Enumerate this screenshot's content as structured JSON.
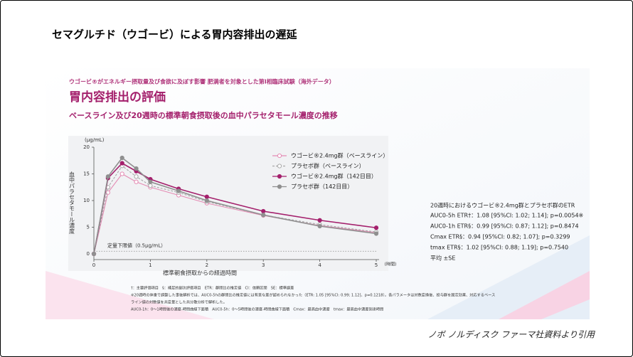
{
  "slide_title": "セマグルチド（ウゴービ）による胃内容排出の遅延",
  "header": {
    "kicker": "ウゴービ®がエネルギー摂取量及び食欲に及ぼす影響 肥満者を対象とした第I相臨床試験（海外データ）",
    "title": "胃内容排出の評価",
    "subtitle": "ベースライン及び20週時の標準朝食摂取後の血中パラセタモール濃度の推移"
  },
  "chart_data": {
    "type": "line",
    "y_unit": "(μg/mL)",
    "y_label": "血中パラセタモール濃度",
    "x_label": "標準朝食摂取からの経過時間",
    "x_unit": "(時間)",
    "x": [
      0,
      0.25,
      0.5,
      0.75,
      1,
      1.5,
      2,
      3,
      4,
      5
    ],
    "xlim": [
      0,
      5
    ],
    "xticks": [
      0,
      1,
      2,
      3,
      4,
      5
    ],
    "ylim": [
      0,
      20
    ],
    "yticks": [
      0,
      5,
      10,
      15,
      20
    ],
    "lloq_line": {
      "value": 0.5,
      "label": "定量下限値（0.5μg/mL）"
    },
    "series": [
      {
        "name": "ウゴービ®2.4mg群（ベースライン）",
        "color": "#e48bb3",
        "marker": "open",
        "dashed": false,
        "values": [
          0,
          11.5,
          15,
          13.5,
          12.5,
          11,
          9.5,
          7.2,
          5.3,
          4.0
        ]
      },
      {
        "name": "プラセボ群（ベースライン）",
        "color": "#a8a8a8",
        "marker": "open",
        "dashed": true,
        "values": [
          0,
          12.5,
          16.5,
          14.5,
          12.8,
          11.5,
          9.8,
          7.3,
          5.5,
          4.1
        ]
      },
      {
        "name": "ウゴービ®2.4mg群（142日目）",
        "color": "#a4206c",
        "marker": "filled",
        "dashed": false,
        "values": [
          0,
          14.2,
          17,
          15.5,
          14,
          12.2,
          10.7,
          8,
          6.3,
          4.9
        ]
      },
      {
        "name": "プラセボ群（142日目）",
        "color": "#8f8f8f",
        "marker": "filled",
        "dashed": false,
        "values": [
          0,
          14.5,
          18,
          16,
          13.5,
          11.8,
          10,
          7.3,
          5.2,
          3.8
        ]
      }
    ]
  },
  "etr": {
    "title": "20週時におけるウゴービ®2.4mg群とプラセボ群のETR",
    "lines": [
      "AUC0-5h ETR†：1.08 [95%CI: 1.02; 1.14]; p=0.0054※",
      "AUC0-1h ETR§：0.99 [95%CI: 0.87; 1.12]; p=0.8474",
      "Cmax ETR§：0.94 [95%CI: 0.82; 1.07];  p=0.3299",
      "tmax ETR§：1.02 [95%CI: 0.88; 1.19];  p=0.7540",
      "平均 ±SE"
    ]
  },
  "footnotes": [
    "†：主要評価項目　§：補足的副次評価項目　ETR：群間比の推定値　CI：信頼区間　SE：標準誤差",
    "※20週時の体重で調整した事後解析では、AUC0-5hの群間比の推定値には有意な差が認められなかった（ETR: 1.05 [95%CI: 0.99; 1.12]、p=0.1218）。各パラメータは対数変換後、投与群を固定効果、対応するベース",
    "ライン値の対数値を共変量とした共分散分析で解析した。",
    "AUC0-1h：0～1時間後の濃度-時間曲線下面積　AUC0-5h：0～5時間後の濃度-時間曲線下面積　Cmax：最高血中濃度　tmax：最高血中濃度到達時間"
  ],
  "source": "ノボ ノルディスク ファーマ社資料より引用"
}
